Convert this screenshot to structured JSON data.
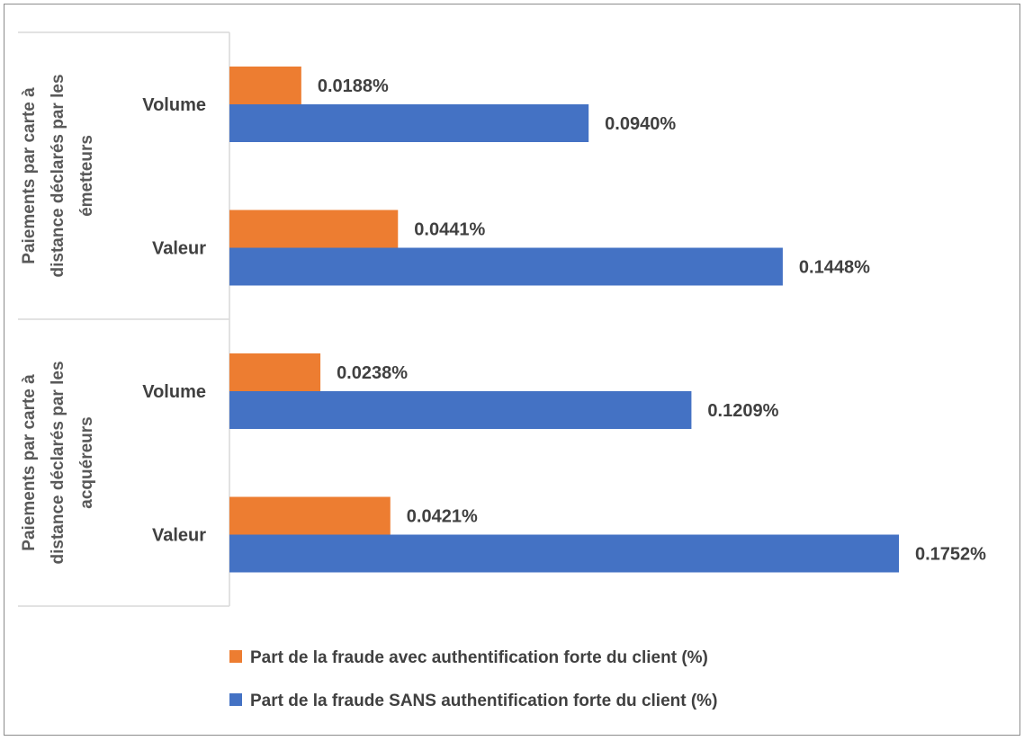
{
  "chart_data": {
    "type": "bar",
    "orientation": "horizontal",
    "groups": [
      {
        "label_lines": [
          "Paiements par carte à",
          "distance déclarés par les",
          "émetteurs"
        ],
        "categories": [
          {
            "label": "Volume",
            "values": [
              0.0188,
              0.094
            ],
            "labels": [
              "0.0188%",
              "0.0940%"
            ]
          },
          {
            "label": "Valeur",
            "values": [
              0.0441,
              0.1448
            ],
            "labels": [
              "0.0441%",
              "0.1448%"
            ]
          }
        ]
      },
      {
        "label_lines": [
          "Paiements par carte à",
          "distance déclarés par les",
          "acquéreurs"
        ],
        "categories": [
          {
            "label": "Volume",
            "values": [
              0.0238,
              0.1209
            ],
            "labels": [
              "0.0238%",
              "0.1209%"
            ]
          },
          {
            "label": "Valeur",
            "values": [
              0.0421,
              0.1752
            ],
            "labels": [
              "0.0421%",
              "0.1752%"
            ]
          }
        ]
      }
    ],
    "series": [
      {
        "name": "Part de la fraude avec authentification forte du client (%)",
        "color": "#ED7D31"
      },
      {
        "name": "Part de la fraude SANS authentification forte du client (%)",
        "color": "#4472C4"
      }
    ],
    "xlim": [
      0,
      0.1752
    ],
    "grid": false,
    "legend_position": "bottom"
  }
}
